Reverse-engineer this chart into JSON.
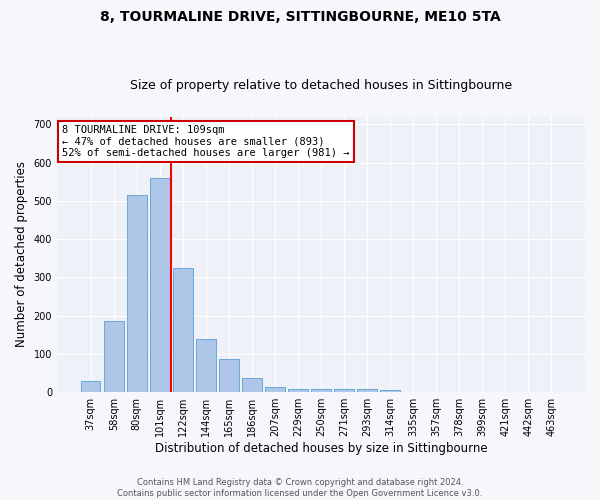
{
  "title": "8, TOURMALINE DRIVE, SITTINGBOURNE, ME10 5TA",
  "subtitle": "Size of property relative to detached houses in Sittingbourne",
  "xlabel": "Distribution of detached houses by size in Sittingbourne",
  "ylabel": "Number of detached properties",
  "categories": [
    "37sqm",
    "58sqm",
    "80sqm",
    "101sqm",
    "122sqm",
    "144sqm",
    "165sqm",
    "186sqm",
    "207sqm",
    "229sqm",
    "250sqm",
    "271sqm",
    "293sqm",
    "314sqm",
    "335sqm",
    "357sqm",
    "378sqm",
    "399sqm",
    "421sqm",
    "442sqm",
    "463sqm"
  ],
  "values": [
    30,
    185,
    515,
    560,
    325,
    140,
    87,
    38,
    13,
    8,
    8,
    8,
    8,
    5,
    0,
    0,
    0,
    0,
    0,
    0,
    0
  ],
  "bar_color": "#aec6e8",
  "bar_edge_color": "#5a9fd4",
  "bar_width": 0.85,
  "red_line_x": 3.5,
  "annotation_line1": "8 TOURMALINE DRIVE: 109sqm",
  "annotation_line2": "← 47% of detached houses are smaller (893)",
  "annotation_line3": "52% of semi-detached houses are larger (981) →",
  "annotation_box_color": "#ffffff",
  "annotation_box_edge_color": "#cc0000",
  "ylim": [
    0,
    720
  ],
  "yticks": [
    0,
    100,
    200,
    300,
    400,
    500,
    600,
    700
  ],
  "title_fontsize": 10,
  "subtitle_fontsize": 9,
  "xlabel_fontsize": 8.5,
  "ylabel_fontsize": 8.5,
  "tick_fontsize": 7,
  "footer_text": "Contains HM Land Registry data © Crown copyright and database right 2024.\nContains public sector information licensed under the Open Government Licence v3.0.",
  "background_color": "#eef2f8",
  "fig_background_color": "#f5f7fb",
  "grid_color": "#ffffff"
}
